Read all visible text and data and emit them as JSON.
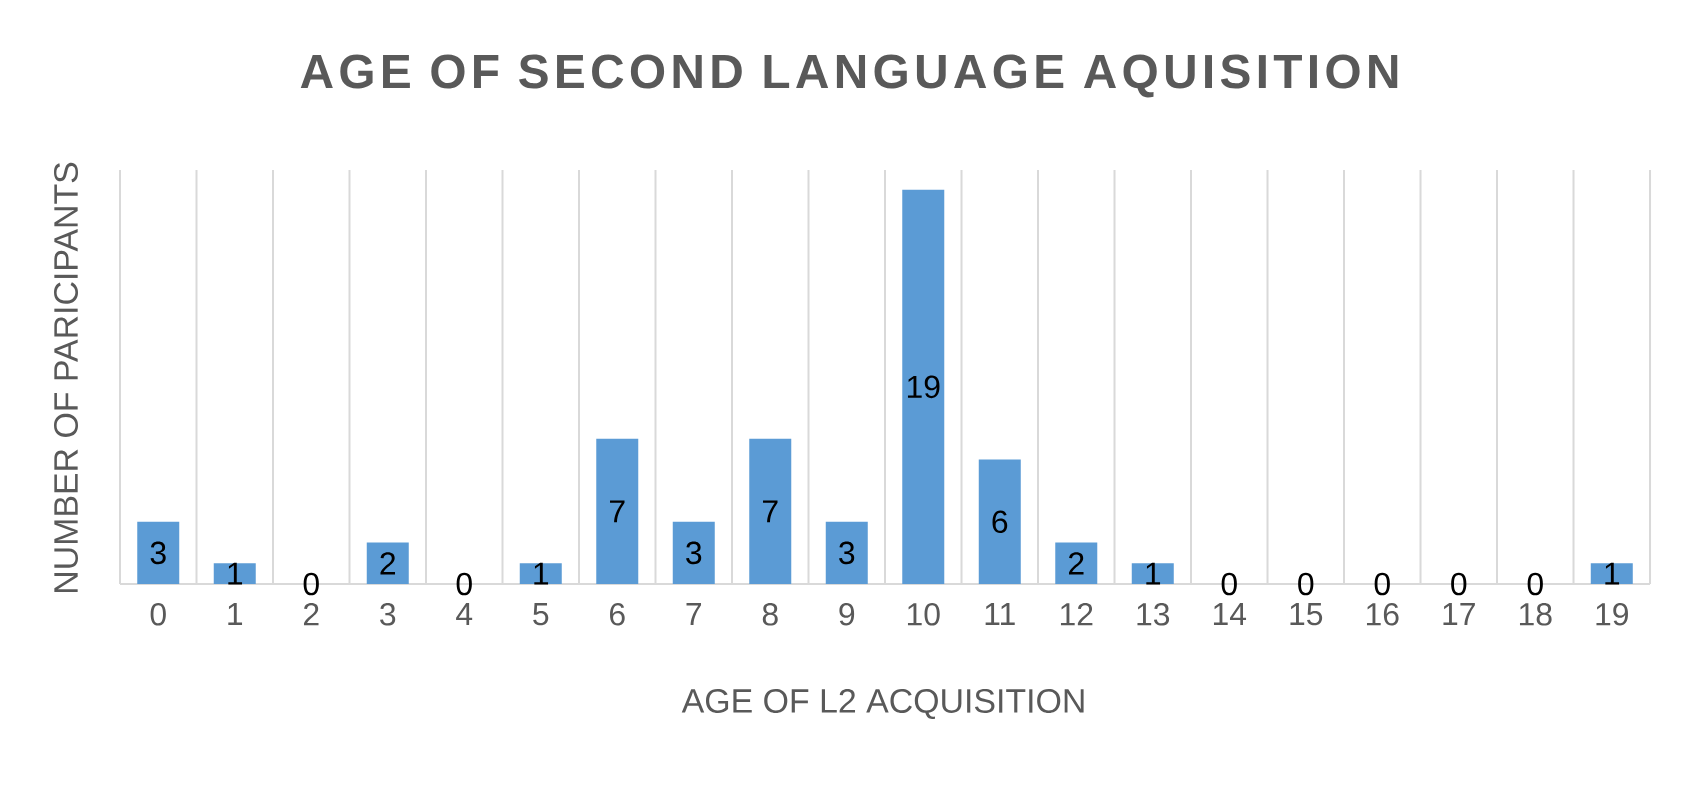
{
  "chart_data": {
    "type": "bar",
    "title": "AGE OF SECOND LANGUAGE AQUISITION",
    "xlabel": "AGE OF L2 ACQUISITION",
    "ylabel": "NUMBER OF PARICIPANTS",
    "categories": [
      "0",
      "1",
      "2",
      "3",
      "4",
      "5",
      "6",
      "7",
      "8",
      "9",
      "10",
      "11",
      "12",
      "13",
      "14",
      "15",
      "16",
      "17",
      "18",
      "19"
    ],
    "values": [
      3,
      1,
      0,
      2,
      0,
      1,
      7,
      3,
      7,
      3,
      19,
      6,
      2,
      1,
      0,
      0,
      0,
      0,
      0,
      1
    ],
    "color": "#5b9bd5",
    "data_labels": true,
    "grid": "x",
    "tick_labels": "x"
  }
}
